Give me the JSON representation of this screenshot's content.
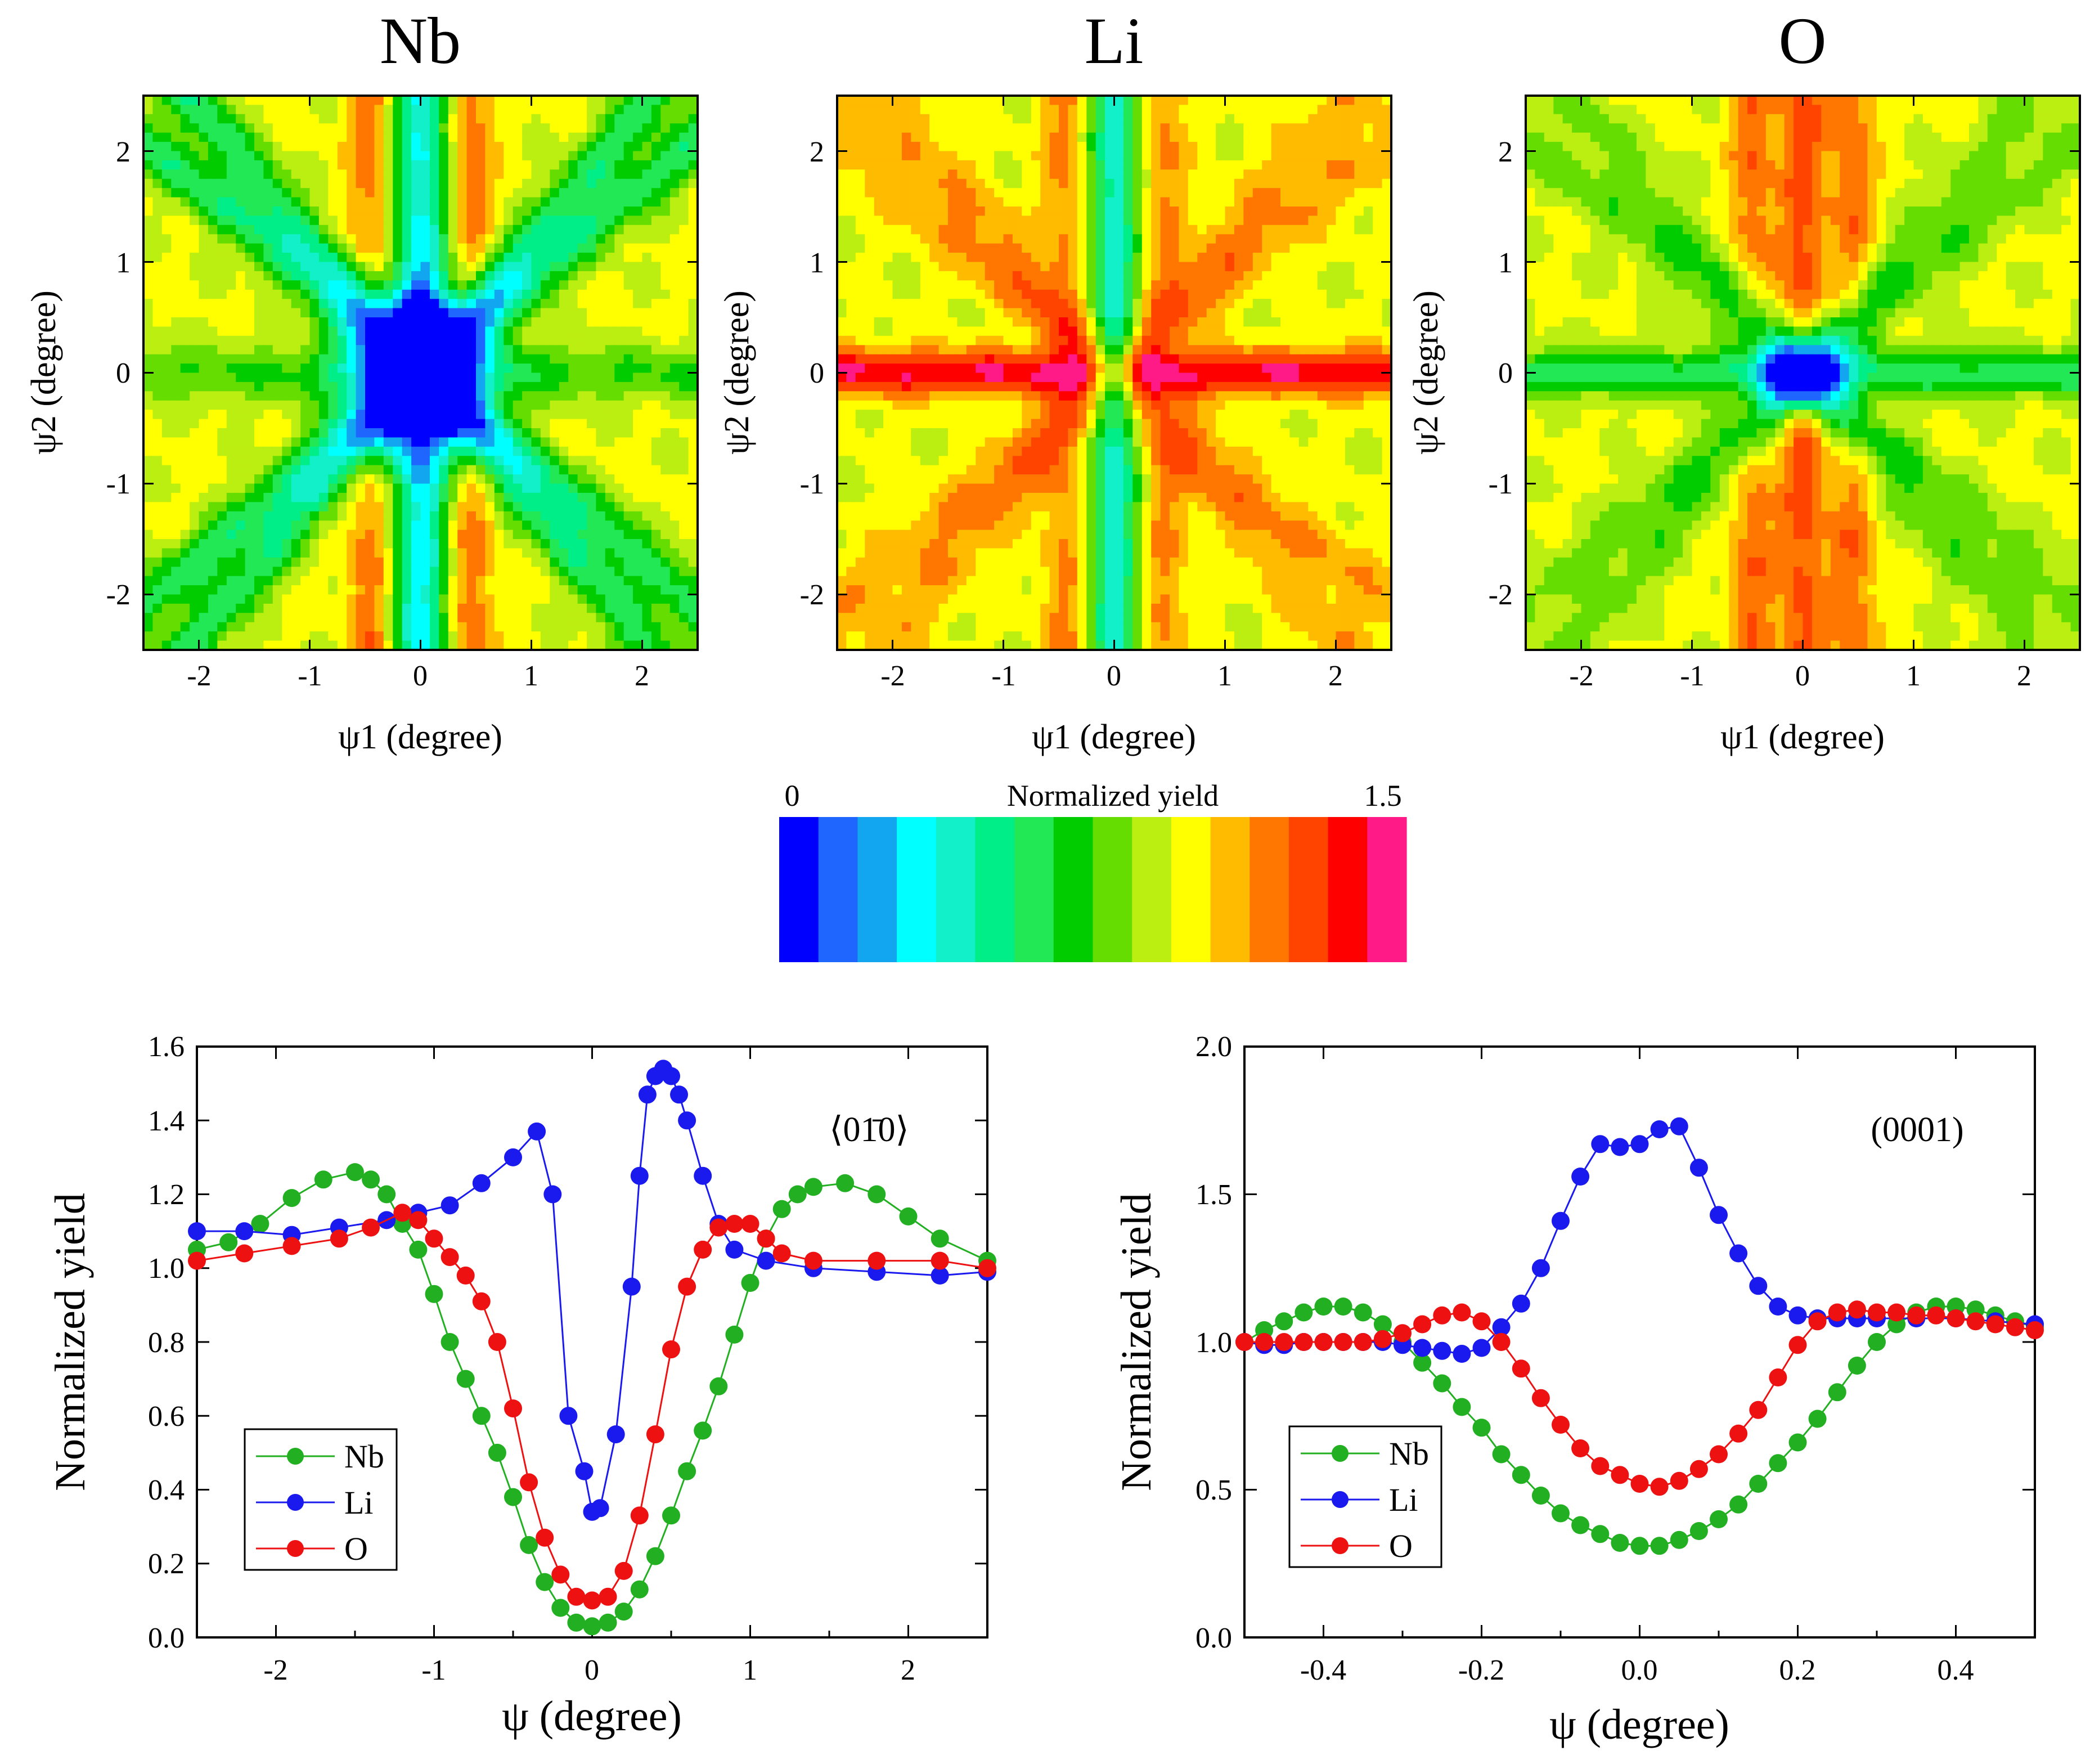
{
  "colormap": {
    "label": "Normalized yield",
    "min_label": "0",
    "max_label": "1.5",
    "min": 0,
    "max": 1.5,
    "colors": [
      "#0000ff",
      "#1f66ff",
      "#12a6f0",
      "#00ffff",
      "#11f0c8",
      "#00ee88",
      "#22e855",
      "#00cc00",
      "#66dd00",
      "#bbee11",
      "#ffff00",
      "#ffbb00",
      "#ff7700",
      "#ff4400",
      "#ff0000",
      "#ff1a88"
    ]
  },
  "chart_data": [
    {
      "type": "heatmap",
      "title": "Nb",
      "xlabel": "ψ1 (degree)",
      "ylabel": "ψ2 (degree)",
      "xlim": [
        -2.5,
        2.5
      ],
      "ylim": [
        -2.5,
        2.5
      ],
      "xticks": [
        "-2",
        "-1",
        "0",
        "1",
        "2"
      ],
      "yticks": [
        "-2",
        "-1",
        "0",
        "1",
        "2"
      ],
      "model": {
        "base": 0.95,
        "center_depth": 0.9,
        "center_width": 0.45,
        "axis_v": -0.6,
        "axis_h": -0.2,
        "diag": -0.35,
        "diag_slopes": [
          0.84,
          1.19
        ],
        "axis_width": 0.18,
        "diag_width": 0.16,
        "shoulder": 0.25
      }
    },
    {
      "type": "heatmap",
      "title": "Li",
      "xlabel": "ψ1 (degree)",
      "ylabel": "ψ2 (degree)",
      "xlim": [
        -2.5,
        2.5
      ],
      "ylim": [
        -2.5,
        2.5
      ],
      "xticks": [
        "-2",
        "-1",
        "0",
        "1",
        "2"
      ],
      "yticks": [
        "-2",
        "-1",
        "0",
        "1",
        "2"
      ],
      "model": {
        "base": 0.95,
        "center_depth": 0.6,
        "center_width": 0.18,
        "axis_v": -0.55,
        "axis_h": 0.45,
        "diag": 0.15,
        "diag_slopes": [
          0.84,
          1.19
        ],
        "axis_width": 0.15,
        "diag_width": 0.18,
        "shoulder": 0.2
      }
    },
    {
      "type": "heatmap",
      "title": "O",
      "xlabel": "ψ1 (degree)",
      "ylabel": "ψ2 (degree)",
      "xlim": [
        -2.5,
        2.5
      ],
      "ylim": [
        -2.5,
        2.5
      ],
      "xticks": [
        "-2",
        "-1",
        "0",
        "1",
        "2"
      ],
      "yticks": [
        "-2",
        "-1",
        "0",
        "1",
        "2"
      ],
      "model": {
        "base": 0.95,
        "center_depth": 0.75,
        "center_width": 0.25,
        "axis_v": 0.3,
        "axis_h": -0.35,
        "diag": -0.15,
        "diag_slopes": [
          0.84,
          1.19
        ],
        "axis_width": 0.15,
        "diag_width": 0.16,
        "shoulder": 0.25
      }
    },
    {
      "type": "line",
      "xlabel": "ψ (degree)",
      "ylabel": "Normalized yield",
      "annotation": "⟨01̄0⟩",
      "xlim": [
        -2.5,
        2.5
      ],
      "ylim": [
        0.0,
        1.6
      ],
      "xticks": [
        -2,
        -1,
        0,
        1,
        2
      ],
      "xtick_labels": [
        "-2",
        "-1",
        "0",
        "1",
        "2"
      ],
      "yticks": [
        0.0,
        0.2,
        0.4,
        0.6,
        0.8,
        1.0,
        1.2,
        1.4,
        1.6
      ],
      "ytick_labels": [
        "0.0",
        "0.2",
        "0.4",
        "0.6",
        "0.8",
        "1.0",
        "1.2",
        "1.4",
        "1.6"
      ],
      "series": [
        {
          "name": "Nb",
          "color": "#22b022",
          "x": [
            -2.5,
            -2.3,
            -2.1,
            -1.9,
            -1.7,
            -1.5,
            -1.4,
            -1.3,
            -1.2,
            -1.1,
            -1.0,
            -0.9,
            -0.8,
            -0.7,
            -0.6,
            -0.5,
            -0.4,
            -0.3,
            -0.2,
            -0.1,
            0.0,
            0.1,
            0.2,
            0.3,
            0.4,
            0.5,
            0.6,
            0.7,
            0.8,
            0.9,
            1.0,
            1.1,
            1.2,
            1.3,
            1.4,
            1.6,
            1.8,
            2.0,
            2.2,
            2.5
          ],
          "y": [
            1.05,
            1.07,
            1.12,
            1.19,
            1.24,
            1.26,
            1.24,
            1.2,
            1.12,
            1.05,
            0.93,
            0.8,
            0.7,
            0.6,
            0.5,
            0.38,
            0.25,
            0.15,
            0.08,
            0.04,
            0.03,
            0.04,
            0.07,
            0.13,
            0.22,
            0.33,
            0.45,
            0.56,
            0.68,
            0.82,
            0.96,
            1.08,
            1.16,
            1.2,
            1.22,
            1.23,
            1.2,
            1.14,
            1.08,
            1.02
          ]
        },
        {
          "name": "Li",
          "color": "#1a1aee",
          "x": [
            -2.5,
            -2.2,
            -1.9,
            -1.6,
            -1.3,
            -1.1,
            -0.9,
            -0.7,
            -0.5,
            -0.35,
            -0.25,
            -0.15,
            -0.05,
            0.0,
            0.05,
            0.15,
            0.25,
            0.3,
            0.35,
            0.4,
            0.45,
            0.5,
            0.55,
            0.6,
            0.7,
            0.8,
            0.9,
            1.1,
            1.4,
            1.8,
            2.2,
            2.5
          ],
          "y": [
            1.1,
            1.1,
            1.09,
            1.11,
            1.13,
            1.15,
            1.17,
            1.23,
            1.3,
            1.37,
            1.2,
            0.6,
            0.45,
            0.34,
            0.35,
            0.55,
            0.95,
            1.25,
            1.47,
            1.52,
            1.54,
            1.52,
            1.47,
            1.4,
            1.25,
            1.12,
            1.05,
            1.02,
            1.0,
            0.99,
            0.98,
            0.99
          ]
        },
        {
          "name": "O",
          "color": "#ee1111",
          "x": [
            -2.5,
            -2.2,
            -1.9,
            -1.6,
            -1.4,
            -1.2,
            -1.1,
            -1.0,
            -0.9,
            -0.8,
            -0.7,
            -0.6,
            -0.5,
            -0.4,
            -0.3,
            -0.2,
            -0.1,
            0.0,
            0.1,
            0.2,
            0.3,
            0.4,
            0.5,
            0.6,
            0.7,
            0.8,
            0.9,
            1.0,
            1.1,
            1.2,
            1.4,
            1.8,
            2.2,
            2.5
          ],
          "y": [
            1.02,
            1.04,
            1.06,
            1.08,
            1.11,
            1.15,
            1.13,
            1.08,
            1.03,
            0.98,
            0.91,
            0.8,
            0.62,
            0.42,
            0.27,
            0.17,
            0.11,
            0.1,
            0.11,
            0.18,
            0.33,
            0.55,
            0.78,
            0.95,
            1.05,
            1.11,
            1.12,
            1.12,
            1.08,
            1.04,
            1.02,
            1.02,
            1.02,
            1.0
          ]
        }
      ],
      "legend": [
        "Nb",
        "Li",
        "O"
      ]
    },
    {
      "type": "line",
      "xlabel": "ψ (degree)",
      "ylabel": "Normalized yield",
      "annotation": "(0001)",
      "xlim": [
        -0.5,
        0.5
      ],
      "ylim": [
        0.0,
        2.0
      ],
      "xticks": [
        -0.4,
        -0.2,
        0.0,
        0.2,
        0.4
      ],
      "xtick_labels": [
        "-0.4",
        "-0.2",
        "0.0",
        "0.2",
        "0.4"
      ],
      "yticks": [
        0.0,
        0.5,
        1.0,
        1.5,
        2.0
      ],
      "ytick_labels": [
        "0.0",
        "0.5",
        "1.0",
        "1.5",
        "2.0"
      ],
      "series": [
        {
          "name": "Nb",
          "color": "#22b022",
          "x": [
            -0.5,
            -0.475,
            -0.45,
            -0.425,
            -0.4,
            -0.375,
            -0.35,
            -0.325,
            -0.3,
            -0.275,
            -0.25,
            -0.225,
            -0.2,
            -0.175,
            -0.15,
            -0.125,
            -0.1,
            -0.075,
            -0.05,
            -0.025,
            0.0,
            0.025,
            0.05,
            0.075,
            0.1,
            0.125,
            0.15,
            0.175,
            0.2,
            0.225,
            0.25,
            0.275,
            0.3,
            0.325,
            0.35,
            0.375,
            0.4,
            0.425,
            0.45,
            0.475,
            0.5
          ],
          "y": [
            1.0,
            1.04,
            1.07,
            1.1,
            1.12,
            1.12,
            1.1,
            1.06,
            1.0,
            0.93,
            0.86,
            0.78,
            0.71,
            0.62,
            0.55,
            0.48,
            0.42,
            0.38,
            0.35,
            0.32,
            0.31,
            0.31,
            0.33,
            0.36,
            0.4,
            0.45,
            0.52,
            0.59,
            0.66,
            0.74,
            0.83,
            0.92,
            1.0,
            1.06,
            1.1,
            1.12,
            1.12,
            1.11,
            1.09,
            1.07,
            1.05
          ]
        },
        {
          "name": "Li",
          "color": "#1a1aee",
          "x": [
            -0.5,
            -0.475,
            -0.45,
            -0.425,
            -0.4,
            -0.375,
            -0.35,
            -0.325,
            -0.3,
            -0.275,
            -0.25,
            -0.225,
            -0.2,
            -0.175,
            -0.15,
            -0.125,
            -0.1,
            -0.075,
            -0.05,
            -0.025,
            0.0,
            0.025,
            0.05,
            0.075,
            0.1,
            0.125,
            0.15,
            0.175,
            0.2,
            0.225,
            0.25,
            0.275,
            0.3,
            0.35,
            0.4,
            0.45,
            0.5
          ],
          "y": [
            1.0,
            0.99,
            0.99,
            1.0,
            1.0,
            1.0,
            1.0,
            1.0,
            0.99,
            0.98,
            0.97,
            0.96,
            0.98,
            1.05,
            1.13,
            1.25,
            1.41,
            1.56,
            1.67,
            1.66,
            1.67,
            1.72,
            1.73,
            1.59,
            1.43,
            1.3,
            1.19,
            1.12,
            1.09,
            1.08,
            1.08,
            1.08,
            1.08,
            1.08,
            1.08,
            1.07,
            1.06
          ]
        },
        {
          "name": "O",
          "color": "#ee1111",
          "x": [
            -0.5,
            -0.475,
            -0.45,
            -0.425,
            -0.4,
            -0.375,
            -0.35,
            -0.325,
            -0.3,
            -0.275,
            -0.25,
            -0.225,
            -0.2,
            -0.175,
            -0.15,
            -0.125,
            -0.1,
            -0.075,
            -0.05,
            -0.025,
            0.0,
            0.025,
            0.05,
            0.075,
            0.1,
            0.125,
            0.15,
            0.175,
            0.2,
            0.225,
            0.25,
            0.275,
            0.3,
            0.325,
            0.35,
            0.375,
            0.4,
            0.425,
            0.45,
            0.475,
            0.5
          ],
          "y": [
            1.0,
            1.0,
            1.0,
            1.0,
            1.0,
            1.0,
            1.0,
            1.01,
            1.03,
            1.06,
            1.09,
            1.1,
            1.07,
            1.0,
            0.91,
            0.81,
            0.72,
            0.64,
            0.58,
            0.55,
            0.52,
            0.51,
            0.53,
            0.57,
            0.62,
            0.69,
            0.77,
            0.88,
            0.99,
            1.07,
            1.1,
            1.11,
            1.1,
            1.1,
            1.09,
            1.09,
            1.08,
            1.07,
            1.06,
            1.05,
            1.04
          ]
        }
      ],
      "legend": [
        "Nb",
        "Li",
        "O"
      ]
    }
  ]
}
